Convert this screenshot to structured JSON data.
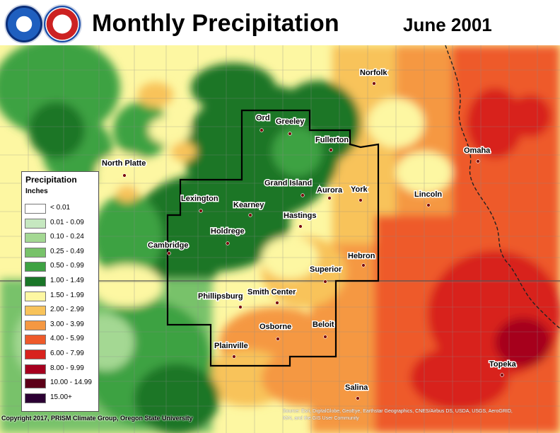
{
  "header": {
    "title": "Monthly Precipitation",
    "date": "June 2001"
  },
  "legend": {
    "title": "Precipitation",
    "units": "Inches",
    "items": [
      {
        "label": "< 0.01",
        "color": "#ffffff"
      },
      {
        "label": "0.01 - 0.09",
        "color": "#c6e8c0"
      },
      {
        "label": "0.10 - 0.24",
        "color": "#a4d893"
      },
      {
        "label": "0.25 - 0.49",
        "color": "#78c26a"
      },
      {
        "label": "0.50 - 0.99",
        "color": "#3ea243"
      },
      {
        "label": "1.00 - 1.49",
        "color": "#1a7628"
      },
      {
        "label": "1.50 - 1.99",
        "color": "#fdf7a2"
      },
      {
        "label": "2.00 - 2.99",
        "color": "#f8c35a"
      },
      {
        "label": "3.00 - 3.99",
        "color": "#f59842"
      },
      {
        "label": "4.00 - 5.99",
        "color": "#ee5a2a"
      },
      {
        "label": "6.00 - 7.99",
        "color": "#d8231e"
      },
      {
        "label": "8.00 - 9.99",
        "color": "#a6001f"
      },
      {
        "label": "10.00 - 14.99",
        "color": "#5c0018"
      },
      {
        "label": "15.00+",
        "color": "#2c0033"
      }
    ]
  },
  "cities": [
    {
      "name": "Norfolk"
    },
    {
      "name": "Ord"
    },
    {
      "name": "Greeley"
    },
    {
      "name": "Fullerton"
    },
    {
      "name": "Omaha"
    },
    {
      "name": "North Platte"
    },
    {
      "name": "Grand Island"
    },
    {
      "name": "Aurora"
    },
    {
      "name": "York"
    },
    {
      "name": "Lincoln"
    },
    {
      "name": "Lexington"
    },
    {
      "name": "Kearney"
    },
    {
      "name": "Hastings"
    },
    {
      "name": "Holdrege"
    },
    {
      "name": "Cambridge"
    },
    {
      "name": "Hebron"
    },
    {
      "name": "Superior"
    },
    {
      "name": "Phillipsburg"
    },
    {
      "name": "Smith Center"
    },
    {
      "name": "Osborne"
    },
    {
      "name": "Beloit"
    },
    {
      "name": "Plainville"
    },
    {
      "name": "Topeka"
    },
    {
      "name": "Salina"
    }
  ],
  "credit": "Copyright 2017, PRISM Climate Group, Oregon State University",
  "source_line1": "Source: Esri, DigitalGlobe, GeoEye, Earthstar Geographics, CNES/Airbus DS, USDA, USGS, AeroGRID,",
  "source_line2": "IGN, and the GIS User Community"
}
